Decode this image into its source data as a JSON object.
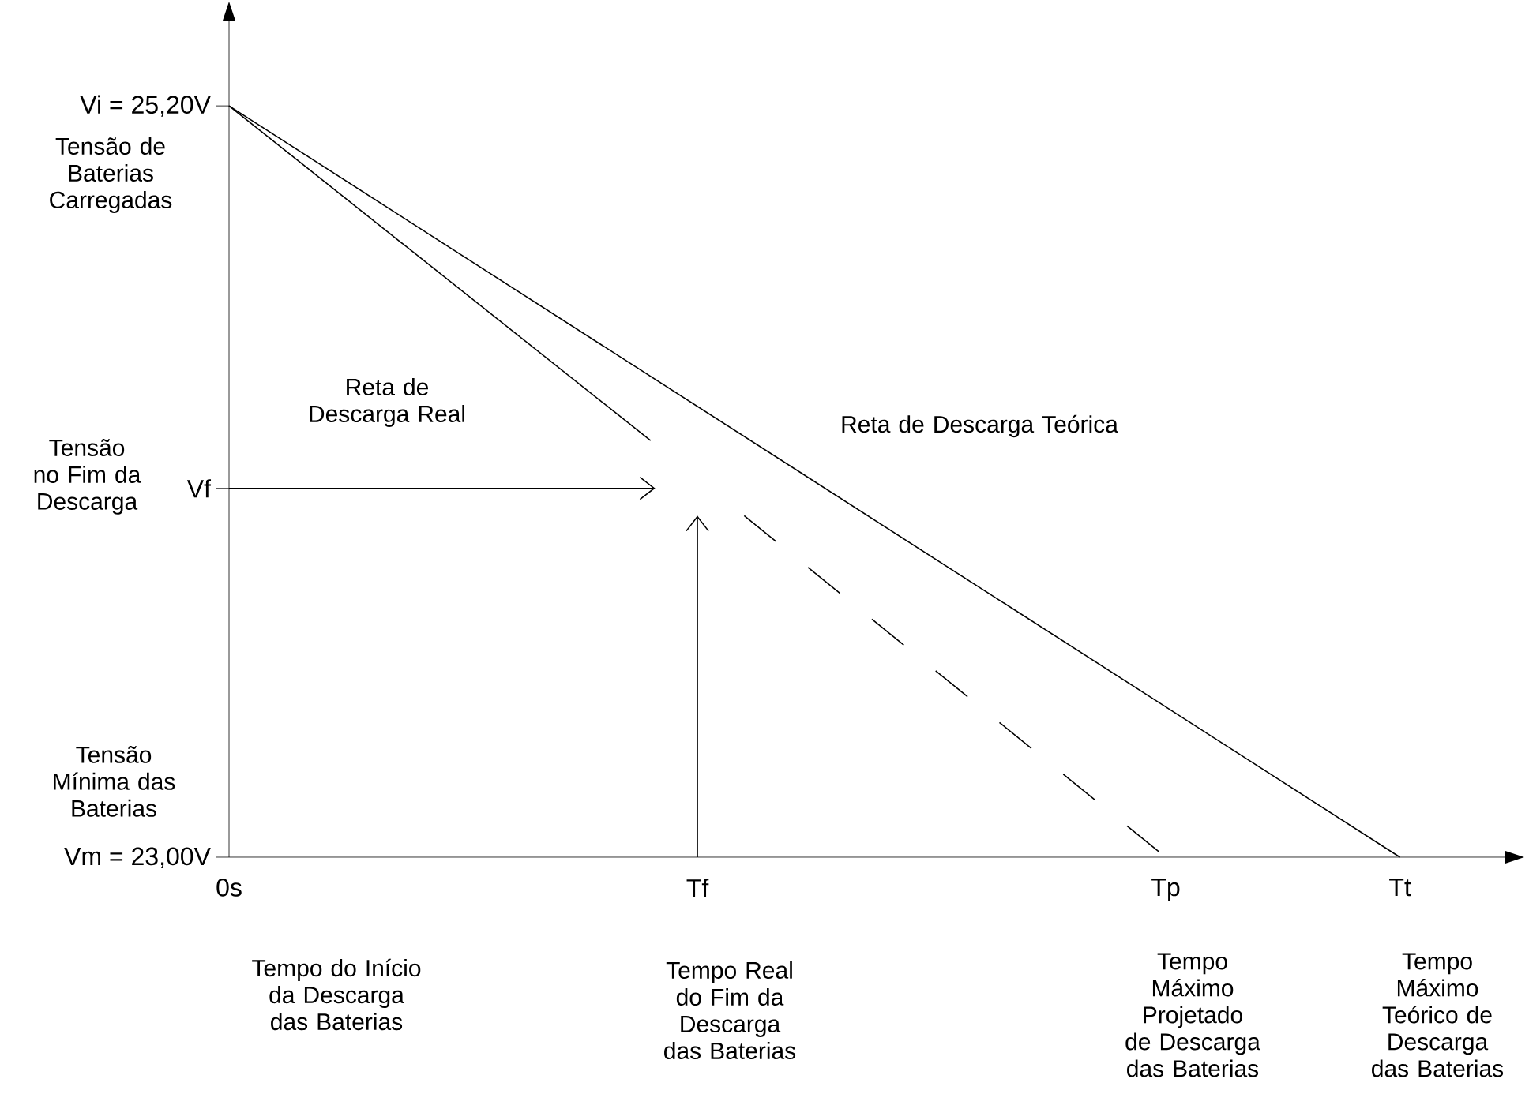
{
  "chart_data": {
    "type": "line",
    "categories": [
      "0s",
      null,
      null,
      null,
      null,
      null,
      null,
      null,
      null,
      null,
      "Tf",
      null,
      null,
      null,
      null,
      null,
      null,
      null,
      null,
      null,
      "Tp",
      null,
      null,
      null,
      null,
      "Tt"
    ],
    "series": [
      {
        "color": "#000000",
        "values": [
          25.2,
          null,
          null,
          null,
          null,
          null,
          null,
          null,
          null,
          null,
          null,
          null,
          null,
          null,
          null,
          null,
          null,
          null,
          null,
          null,
          null,
          null,
          null,
          null,
          null,
          23.0
        ]
      },
      {
        "color": "#000000",
        "values": [
          25.2,
          null,
          null,
          null,
          null,
          null,
          null,
          null,
          null,
          24.22,
          null,
          null,
          null,
          null,
          null,
          null,
          null,
          null,
          null,
          null,
          null,
          null,
          null,
          null,
          null,
          null
        ]
      },
      {
        "color": "#000000",
        "values": [
          null,
          null,
          null,
          null,
          null,
          null,
          null,
          null,
          null,
          null,
          null,
          24.0,
          null,
          null,
          null,
          null,
          null,
          null,
          null,
          null,
          23.0,
          null,
          null,
          null,
          null,
          null
        ],
        "line_style": "dashed"
      }
    ],
    "ylim": [
      23.0,
      25.45
    ],
    "yticks": [
      {
        "value": 23.0,
        "label": "Vm = 23,00V"
      },
      {
        "value": 24.08,
        "label": "Vf"
      },
      {
        "value": 25.2,
        "label": "Vi = 25,20V"
      }
    ],
    "annotations": [
      "Tensão de Baterias Carregadas",
      "Tensão no Fim da Descarga",
      "Tensão Mínima das Baterias",
      "Tempo do Início da Descarga das Baterias",
      "Tempo Real do Fim da Descarga das Baterias",
      "Tempo Máximo Projetado de Descarga das Baterias",
      "Tempo Máximo Teórico de Descarga das Baterias",
      "Reta de Descarga Real",
      "Reta de Descarga Teórica"
    ],
    "grid": false,
    "marker": "none",
    "line_style": "solid"
  }
}
